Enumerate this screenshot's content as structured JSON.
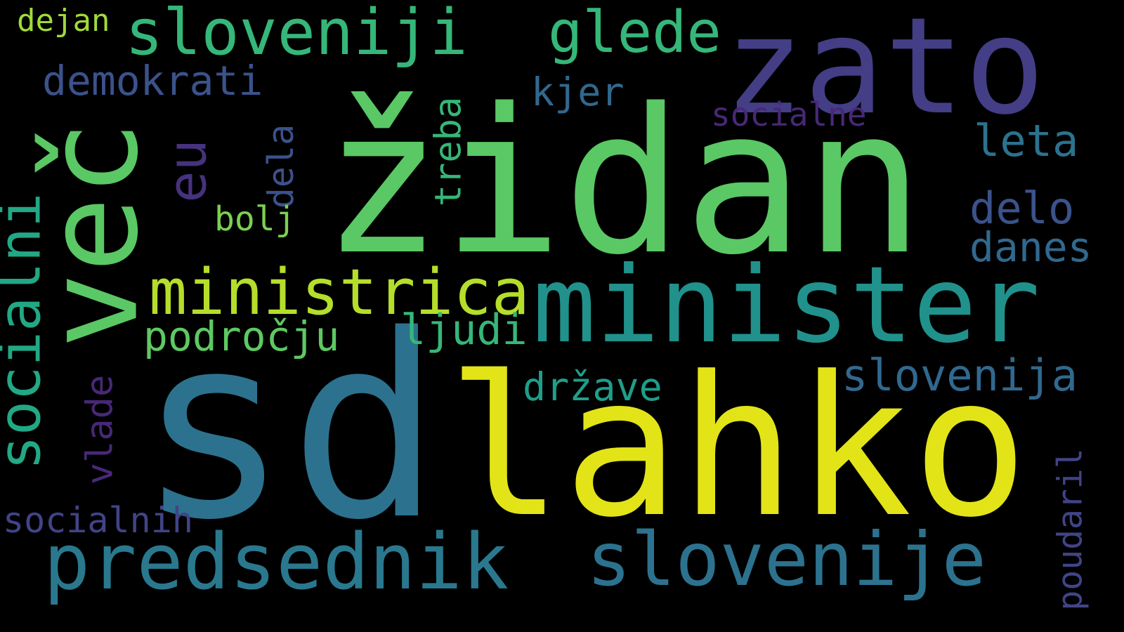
{
  "words": [
    {
      "text": "židan",
      "color": "#5ac864"
    },
    {
      "text": "sd",
      "color": "#2c728e"
    },
    {
      "text": "lahko",
      "color": "#e2e418"
    },
    {
      "text": "zato",
      "color": "#433e85"
    },
    {
      "text": "minister",
      "color": "#21918c"
    },
    {
      "text": "več",
      "color": "#5ac864"
    },
    {
      "text": "slovenije",
      "color": "#2c728e"
    },
    {
      "text": "predsednik",
      "color": "#2a788e"
    },
    {
      "text": "ministrica",
      "color": "#b5de2b"
    },
    {
      "text": "sloveniji",
      "color": "#35b779"
    },
    {
      "text": "glede",
      "color": "#35b779"
    },
    {
      "text": "socialni",
      "color": "#22a884"
    },
    {
      "text": "eu",
      "color": "#46327e"
    },
    {
      "text": "demokrati",
      "color": "#3b528b"
    },
    {
      "text": "slovenija",
      "color": "#31688e"
    },
    {
      "text": "leta",
      "color": "#2c728e"
    },
    {
      "text": "delo",
      "color": "#3b528b"
    },
    {
      "text": "danes",
      "color": "#31688e"
    },
    {
      "text": "kjer",
      "color": "#31688e"
    },
    {
      "text": "socialne",
      "color": "#482878"
    },
    {
      "text": "treba",
      "color": "#35b779"
    },
    {
      "text": "dela",
      "color": "#3b528b"
    },
    {
      "text": "bolj",
      "color": "#7ad151"
    },
    {
      "text": "področju",
      "color": "#5ec962"
    },
    {
      "text": "ljudi",
      "color": "#35b779"
    },
    {
      "text": "države",
      "color": "#1f9e89"
    },
    {
      "text": "vlade",
      "color": "#482878"
    },
    {
      "text": "socialnih",
      "color": "#414487"
    },
    {
      "text": "poudaril",
      "color": "#414487"
    },
    {
      "text": "dejan",
      "color": "#a0da39"
    }
  ]
}
